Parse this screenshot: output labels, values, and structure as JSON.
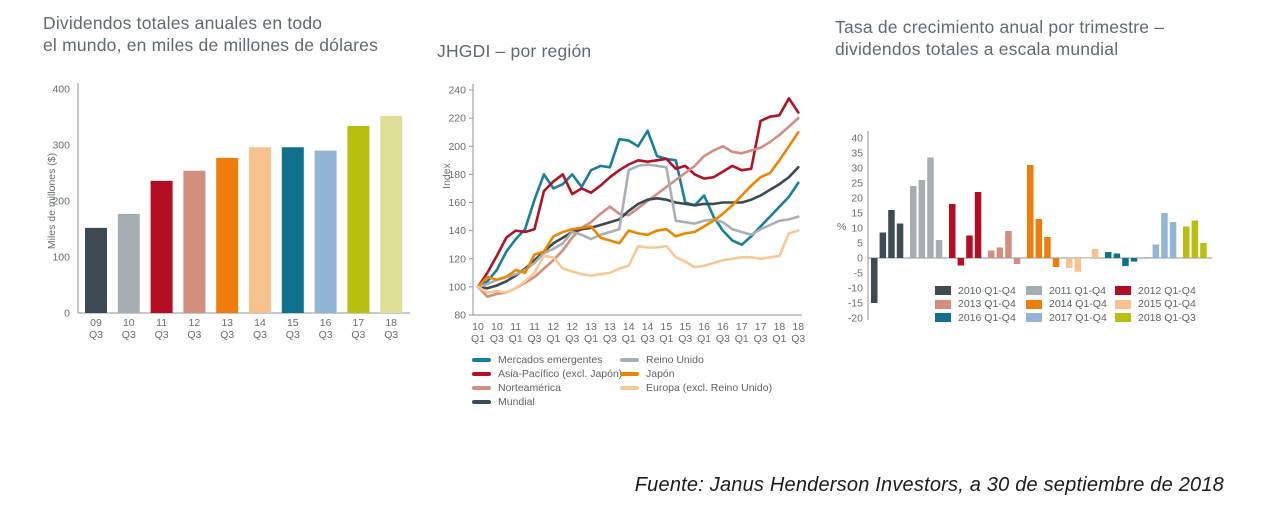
{
  "page": {
    "background": "#ffffff",
    "source_note": "Fuente: Janus Henderson Investors, a 30 de septiembre de 2018"
  },
  "colors": {
    "title_gray": "#5f6a71",
    "axis_gray": "#9aa0a3",
    "tick_text": "#676d70"
  },
  "chart_data": [
    {
      "id": "total-dividends",
      "type": "bar",
      "title_lines": [
        "Dividendos totales anuales en todo",
        "el mundo, en miles de millones de dólares"
      ],
      "ylabel": "Miles de millones ($)",
      "ylim": [
        0,
        400
      ],
      "yticks": [
        400,
        300,
        200,
        100,
        0
      ],
      "grid": false,
      "categories": [
        [
          "09",
          "Q3"
        ],
        [
          "10",
          "Q3"
        ],
        [
          "11",
          "Q3"
        ],
        [
          "12",
          "Q3"
        ],
        [
          "13",
          "Q3"
        ],
        [
          "14",
          "Q3"
        ],
        [
          "15",
          "Q3"
        ],
        [
          "16",
          "Q3"
        ],
        [
          "17",
          "Q3"
        ],
        [
          "18",
          "Q3"
        ]
      ],
      "values": [
        152,
        177,
        236,
        254,
        277,
        296,
        296,
        290,
        334,
        352
      ],
      "bar_colors": [
        "#3e4a54",
        "#a5aeb3",
        "#b30e23",
        "#d28e7f",
        "#ee7d0c",
        "#f7c28d",
        "#10718f",
        "#93b5d5",
        "#b9bf0f",
        "#dde096"
      ]
    },
    {
      "id": "jhgdi-by-region",
      "type": "line",
      "title": "JHGDI – por región",
      "ylabel": "Index",
      "ylim": [
        80,
        240
      ],
      "yticks": [
        240,
        220,
        200,
        180,
        160,
        140,
        120,
        100,
        80
      ],
      "grid": false,
      "x_tick_labels": [
        [
          "10",
          "Q1"
        ],
        [
          "10",
          "Q3"
        ],
        [
          "11",
          "Q1"
        ],
        [
          "11",
          "Q3"
        ],
        [
          "12",
          "Q1"
        ],
        [
          "12",
          "Q3"
        ],
        [
          "13",
          "Q1"
        ],
        [
          "13",
          "Q3"
        ],
        [
          "14",
          "Q1"
        ],
        [
          "14",
          "Q3"
        ],
        [
          "15",
          "Q1"
        ],
        [
          "15",
          "Q3"
        ],
        [
          "16",
          "Q1"
        ],
        [
          "16",
          "Q3"
        ],
        [
          "17",
          "Q1"
        ],
        [
          "17",
          "Q3"
        ],
        [
          "18",
          "Q1"
        ],
        [
          "18",
          "Q3"
        ]
      ],
      "x_label_every": 2,
      "n_points": 35,
      "legend_position": "below, two columns",
      "legend_columns": [
        [
          0,
          1,
          2,
          3
        ],
        [
          4,
          5,
          6
        ]
      ],
      "series": [
        {
          "name": "Mercados emergentes",
          "color": "#17809f",
          "values": [
            100,
            104,
            112,
            125,
            134,
            141,
            162,
            180,
            170,
            173,
            180,
            171,
            183,
            186,
            185,
            205,
            204,
            200,
            211,
            193,
            191,
            190,
            160,
            158,
            165,
            150,
            140,
            133,
            130,
            136,
            143,
            150,
            157,
            164,
            174
          ]
        },
        {
          "name": "Asia-Pacífico (excl. Japón)",
          "color": "#b11226",
          "values": [
            100,
            110,
            122,
            135,
            140,
            139,
            141,
            168,
            175,
            180,
            166,
            170,
            167,
            172,
            178,
            183,
            187,
            190,
            189,
            190,
            191,
            184,
            186,
            180,
            177,
            178,
            182,
            186,
            183,
            184,
            218,
            221,
            222,
            234,
            224
          ]
        },
        {
          "name": "Norteamérica",
          "color": "#d28e7f",
          "values": [
            100,
            93,
            95,
            96,
            99,
            103,
            107,
            113,
            119,
            126,
            135,
            142,
            146,
            152,
            157,
            152,
            151,
            156,
            161,
            166,
            171,
            176,
            181,
            186,
            193,
            197,
            200,
            196,
            195,
            197,
            199,
            203,
            208,
            214,
            220
          ]
        },
        {
          "name": "Mundial",
          "color": "#3d4a53",
          "values": [
            100,
            99,
            101,
            104,
            108,
            113,
            119,
            125,
            131,
            135,
            139,
            141,
            142,
            144,
            146,
            148,
            154,
            159,
            162,
            163,
            162,
            160,
            159,
            158,
            159,
            159,
            160,
            160,
            160,
            162,
            165,
            169,
            173,
            178,
            185
          ]
        },
        {
          "name": "Reino Unido",
          "color": "#a9b0b5",
          "values": [
            100,
            102,
            105,
            107,
            109,
            112,
            117,
            124,
            127,
            131,
            139,
            137,
            134,
            137,
            139,
            141,
            183,
            186,
            187,
            186,
            185,
            147,
            146,
            145,
            147,
            148,
            146,
            141,
            139,
            137,
            141,
            144,
            147,
            148,
            150
          ]
        },
        {
          "name": "Japón",
          "color": "#ec8500",
          "values": [
            100,
            107,
            105,
            107,
            112,
            110,
            123,
            125,
            136,
            139,
            141,
            142,
            143,
            135,
            133,
            131,
            140,
            138,
            137,
            140,
            141,
            136,
            138,
            139,
            143,
            147,
            152,
            158,
            165,
            172,
            178,
            181,
            190,
            200,
            210
          ]
        },
        {
          "name": "Europa (excl. Reino Unido)",
          "color": "#f8c895",
          "values": [
            100,
            96,
            97,
            96,
            99,
            104,
            110,
            122,
            121,
            113,
            111,
            109,
            108,
            109,
            110,
            113,
            115,
            129,
            128,
            128,
            129,
            121,
            118,
            114,
            115,
            117,
            119,
            120,
            121,
            121,
            120,
            121,
            122,
            138,
            140
          ]
        }
      ]
    },
    {
      "id": "annual-growth-by-quarter",
      "type": "bar",
      "title_lines": [
        "Tasa de crecimiento anual por trimestre –",
        "dividendos totales a escala mundial"
      ],
      "ylabel": "%",
      "ylim": [
        -20,
        40
      ],
      "yticks": [
        40,
        35,
        30,
        25,
        20,
        15,
        10,
        5,
        0,
        -5,
        -10,
        -15,
        -20
      ],
      "grid": false,
      "legend_position": "inside bottom, three columns",
      "groups": [
        {
          "label": "2010 Q1-Q4",
          "color": "#3e4a54",
          "values": [
            -15,
            8.5,
            16,
            11.5
          ]
        },
        {
          "label": "2011 Q1-Q4",
          "color": "#a5aeb3",
          "values": [
            24,
            26,
            33.5,
            6
          ]
        },
        {
          "label": "2012 Q1-Q4",
          "color": "#b30e23",
          "values": [
            18,
            -2.5,
            7.5,
            22
          ]
        },
        {
          "label": "2013 Q1-Q4",
          "color": "#d28e7f",
          "values": [
            2.5,
            3.5,
            9,
            -2
          ]
        },
        {
          "label": "2014 Q1-Q4",
          "color": "#ee7d0c",
          "values": [
            31,
            13,
            7,
            -3
          ]
        },
        {
          "label": "2015 Q1-Q4",
          "color": "#f7c28d",
          "values": [
            -3.3,
            -4.6,
            0,
            3
          ]
        },
        {
          "label": "2016 Q1-Q4",
          "color": "#10718f",
          "values": [
            2,
            1.5,
            -2.7,
            -1.2
          ]
        },
        {
          "label": "2017 Q1-Q4",
          "color": "#93b5d5",
          "values": [
            0.3,
            4.5,
            15,
            12
          ]
        },
        {
          "label": "2018 Q1-Q3",
          "color": "#b9bf0f",
          "values": [
            10.5,
            12.5,
            5
          ]
        }
      ]
    }
  ]
}
